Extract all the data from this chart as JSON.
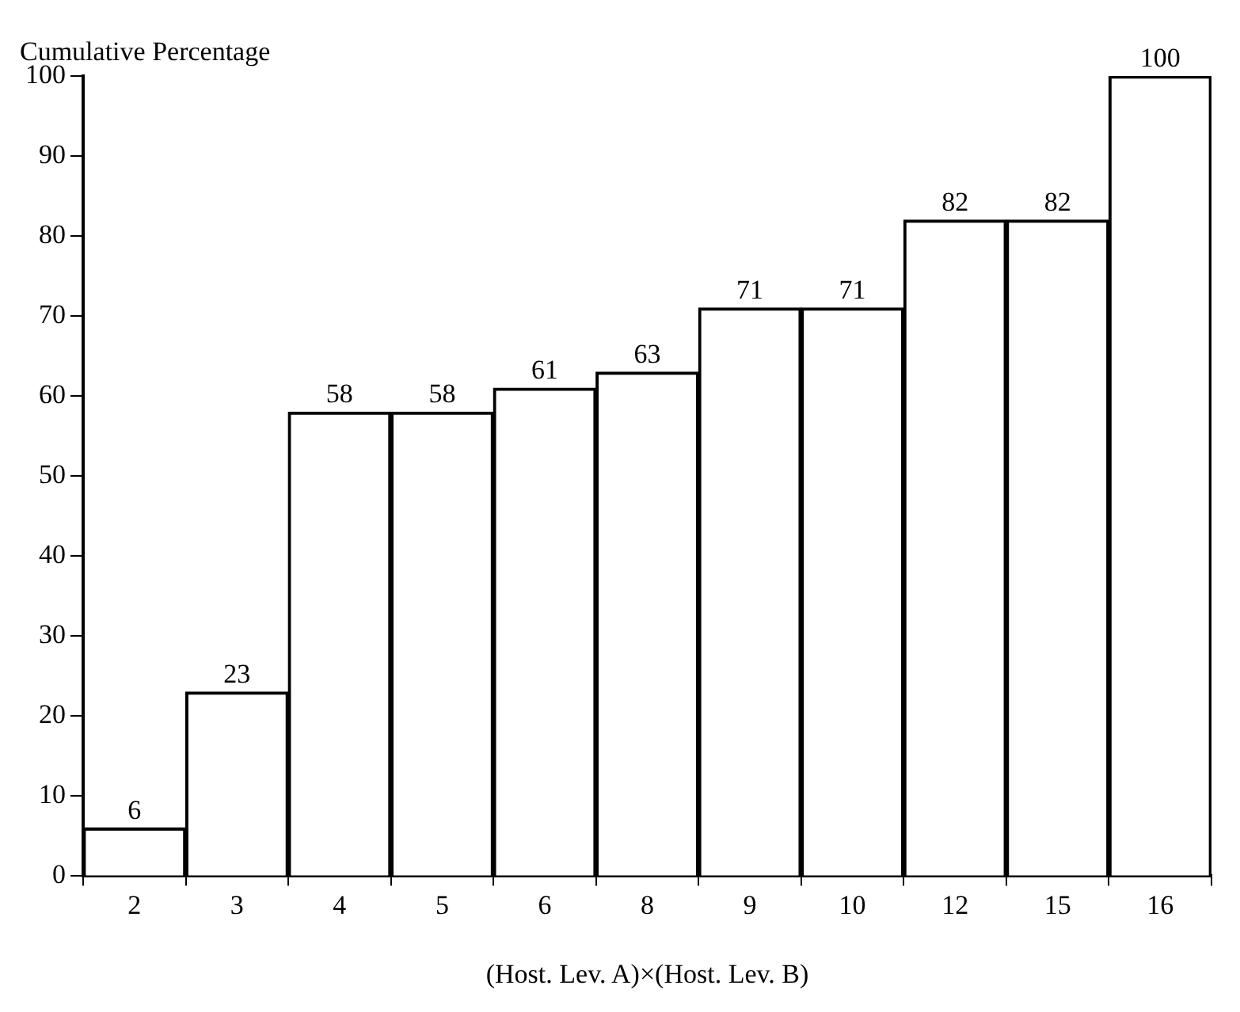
{
  "chart_data": {
    "type": "bar",
    "ylabel": "Cumulative Percentage",
    "xlabel": "(Host. Lev. A)×(Host. Lev. B)",
    "categories": [
      "2",
      "3",
      "4",
      "5",
      "6",
      "8",
      "9",
      "10",
      "12",
      "15",
      "16"
    ],
    "values": [
      6,
      23,
      58,
      58,
      61,
      63,
      71,
      71,
      82,
      82,
      100
    ],
    "color": "#ffffff",
    "ylim": [
      0,
      100
    ],
    "yticks": [
      0,
      10,
      20,
      30,
      40,
      50,
      60,
      70,
      80,
      90,
      100
    ],
    "grid": false,
    "data_labels": true
  }
}
